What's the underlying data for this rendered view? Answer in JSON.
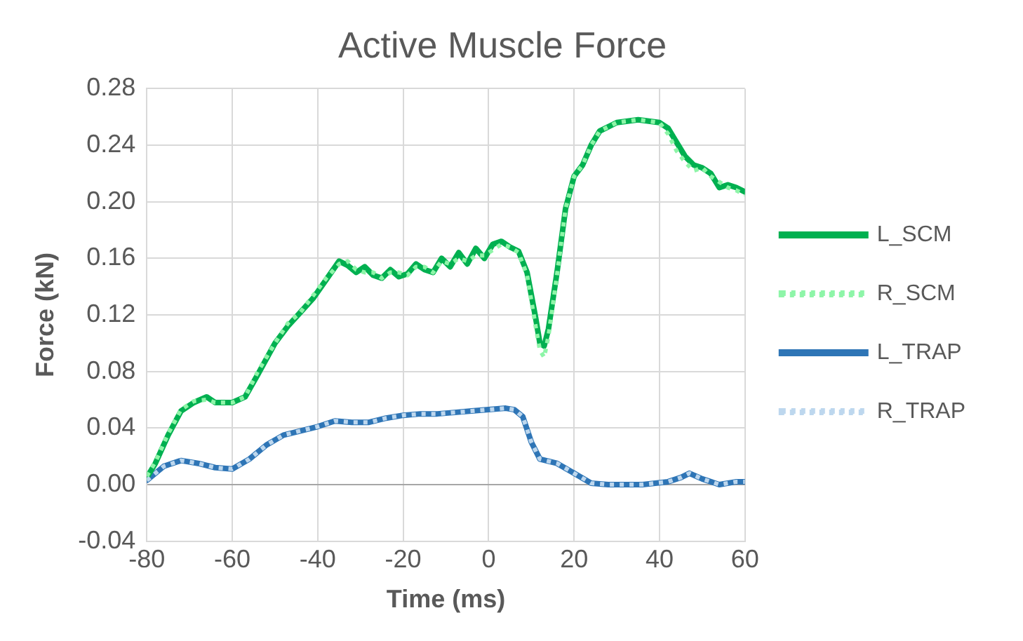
{
  "chart_data": {
    "type": "line",
    "title": "Active Muscle Force",
    "xlabel": "Time (ms)",
    "ylabel": "Force (kN)",
    "xlim": [
      -80,
      60
    ],
    "xticks": [
      -80,
      -60,
      -40,
      -20,
      0,
      20,
      40,
      60
    ],
    "ylim": [
      -0.04,
      0.28
    ],
    "yticks": [
      -0.04,
      {
        "value": 0,
        "label": "0.00"
      },
      0.04,
      0.08,
      0.12,
      0.16,
      {
        "value": 0.2,
        "label": "0.20"
      },
      0.24,
      0.28
    ],
    "grid": true,
    "legend": "right",
    "marker": "none",
    "series": [
      {
        "name": "L_SCM",
        "color": "#00b050",
        "line_style": "solid",
        "x": [
          -80,
          -78,
          -75,
          -72,
          -69,
          -66,
          -64,
          -60,
          -57,
          -54,
          -50,
          -47,
          -44,
          -41,
          -38,
          -35,
          -33,
          -31,
          -29,
          -27,
          -25,
          -23,
          -21,
          -19,
          -17,
          -15,
          -13,
          -11,
          -9,
          -7,
          -5,
          -3,
          -1,
          1,
          3,
          5,
          7,
          9,
          11,
          12,
          13,
          14,
          16,
          18,
          20,
          22,
          24,
          26,
          30,
          35,
          40,
          42,
          44,
          46,
          48,
          50,
          52,
          54,
          56,
          58,
          60
        ],
        "values": [
          0.005,
          0.015,
          0.035,
          0.052,
          0.058,
          0.062,
          0.058,
          0.058,
          0.062,
          0.078,
          0.1,
          0.112,
          0.122,
          0.132,
          0.145,
          0.158,
          0.155,
          0.15,
          0.154,
          0.148,
          0.146,
          0.152,
          0.147,
          0.149,
          0.156,
          0.152,
          0.15,
          0.16,
          0.154,
          0.164,
          0.156,
          0.167,
          0.16,
          0.17,
          0.172,
          0.168,
          0.165,
          0.15,
          0.118,
          0.1,
          0.098,
          0.11,
          0.15,
          0.195,
          0.218,
          0.226,
          0.24,
          0.25,
          0.256,
          0.258,
          0.256,
          0.252,
          0.242,
          0.232,
          0.226,
          0.224,
          0.22,
          0.21,
          0.212,
          0.21,
          0.207
        ]
      },
      {
        "name": "R_SCM",
        "color": "#8ef5a8",
        "line_style": "dotted",
        "x": [
          -80,
          -78,
          -75,
          -72,
          -69,
          -66,
          -64,
          -60,
          -57,
          -54,
          -50,
          -47,
          -44,
          -41,
          -38,
          -35,
          -33,
          -31,
          -29,
          -27,
          -25,
          -23,
          -21,
          -19,
          -17,
          -15,
          -13,
          -11,
          -9,
          -7,
          -5,
          -3,
          -1,
          1,
          3,
          5,
          7,
          9,
          11,
          12,
          13,
          14,
          16,
          18,
          20,
          22,
          24,
          26,
          30,
          35,
          40,
          42,
          44,
          46,
          48,
          50,
          52,
          54,
          56,
          58,
          60
        ],
        "values": [
          0.006,
          0.016,
          0.036,
          0.053,
          0.059,
          0.06,
          0.058,
          0.058,
          0.062,
          0.08,
          0.1,
          0.114,
          0.122,
          0.134,
          0.146,
          0.156,
          0.158,
          0.152,
          0.15,
          0.15,
          0.146,
          0.15,
          0.15,
          0.148,
          0.154,
          0.154,
          0.15,
          0.158,
          0.156,
          0.16,
          0.158,
          0.162,
          0.162,
          0.166,
          0.17,
          0.168,
          0.164,
          0.148,
          0.112,
          0.095,
          0.09,
          0.105,
          0.148,
          0.195,
          0.218,
          0.226,
          0.24,
          0.25,
          0.256,
          0.258,
          0.256,
          0.248,
          0.236,
          0.228,
          0.222,
          0.224,
          0.218,
          0.214,
          0.21,
          0.208,
          0.205
        ]
      },
      {
        "name": "L_TRAP",
        "color": "#2e75b6",
        "line_style": "solid",
        "x": [
          -80,
          -76,
          -72,
          -68,
          -64,
          -60,
          -56,
          -52,
          -48,
          -44,
          -40,
          -36,
          -32,
          -28,
          -24,
          -20,
          -16,
          -12,
          -8,
          -4,
          0,
          4,
          6,
          8,
          10,
          12,
          16,
          20,
          24,
          28,
          36,
          42,
          45,
          47,
          50,
          54,
          58,
          60
        ],
        "values": [
          0.003,
          0.013,
          0.017,
          0.015,
          0.012,
          0.011,
          0.018,
          0.028,
          0.035,
          0.038,
          0.041,
          0.045,
          0.044,
          0.044,
          0.047,
          0.049,
          0.05,
          0.05,
          0.051,
          0.052,
          0.053,
          0.054,
          0.053,
          0.048,
          0.03,
          0.018,
          0.015,
          0.008,
          0.001,
          0.0,
          0.0,
          0.002,
          0.005,
          0.008,
          0.004,
          0.0,
          0.002,
          0.002
        ]
      },
      {
        "name": "R_TRAP",
        "color": "#bdd7ee",
        "line_style": "dotted",
        "x": [
          -80,
          -76,
          -72,
          -68,
          -64,
          -60,
          -56,
          -52,
          -48,
          -44,
          -40,
          -36,
          -32,
          -28,
          -24,
          -20,
          -16,
          -12,
          -8,
          -4,
          0,
          4,
          6,
          8,
          10,
          12,
          16,
          20,
          24,
          28,
          36,
          42,
          45,
          47,
          50,
          54,
          58,
          60
        ],
        "values": [
          0.003,
          0.013,
          0.017,
          0.015,
          0.012,
          0.011,
          0.018,
          0.028,
          0.035,
          0.038,
          0.041,
          0.045,
          0.044,
          0.044,
          0.047,
          0.049,
          0.05,
          0.05,
          0.051,
          0.052,
          0.053,
          0.054,
          0.053,
          0.048,
          0.03,
          0.018,
          0.015,
          0.008,
          0.001,
          0.0,
          0.0,
          0.002,
          0.005,
          0.008,
          0.004,
          0.0,
          0.002,
          0.002
        ]
      }
    ]
  }
}
